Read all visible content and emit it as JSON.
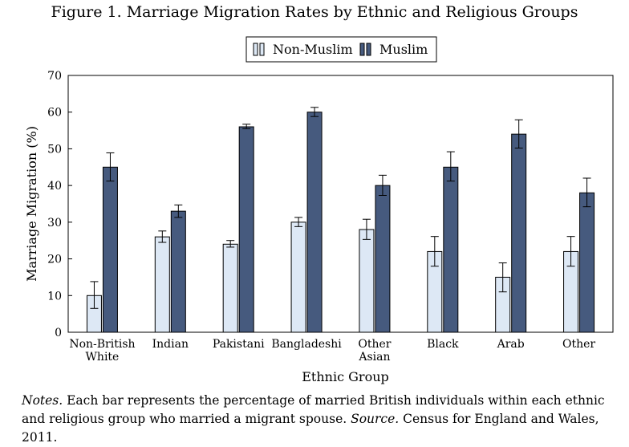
{
  "chart_data": {
    "type": "bar",
    "title": "Figure 1. Marriage Migration Rates by Ethnic and Religious Groups",
    "xlabel": "Ethnic Group",
    "ylabel": "Marriage Migration (%)",
    "ylim": [
      0,
      70
    ],
    "yticks": [
      0,
      10,
      20,
      30,
      40,
      50,
      60,
      70
    ],
    "categories": [
      [
        "Non-British",
        "White"
      ],
      [
        "Indian"
      ],
      [
        "Pakistani"
      ],
      [
        "Bangladeshi"
      ],
      [
        "Other",
        "Asian"
      ],
      [
        "Black"
      ],
      [
        "Arab"
      ],
      [
        "Other"
      ]
    ],
    "series": [
      {
        "name": "Non-Muslim",
        "color": "#dde8f5",
        "values": [
          10,
          26,
          24,
          30,
          28,
          22,
          15,
          22
        ],
        "error_low": [
          6.5,
          24.5,
          23.2,
          28.8,
          25.3,
          18,
          11,
          18
        ],
        "error_high": [
          13.8,
          27.6,
          25,
          31.3,
          30.8,
          26.1,
          18.9,
          26.1
        ]
      },
      {
        "name": "Muslim",
        "color": "#465a7e",
        "values": [
          45,
          33,
          56,
          60,
          40,
          45,
          54,
          38
        ],
        "error_low": [
          41.2,
          31.3,
          55.5,
          58.8,
          37.3,
          41.2,
          50.2,
          34.2
        ],
        "error_high": [
          48.9,
          34.7,
          56.7,
          61.3,
          42.8,
          49.2,
          57.9,
          42
        ]
      }
    ],
    "legend_position": "top-center",
    "grid": false
  },
  "notes": {
    "label": "Notes.",
    "text": " Each bar represents the percentage of married British individuals within each ethnic and religious group who married a migrant spouse. ",
    "source_label": "Source.",
    "source_text": " Census for England and Wales, 2011."
  }
}
